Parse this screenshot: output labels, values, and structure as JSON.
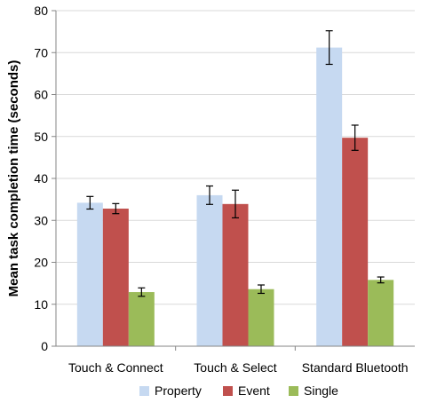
{
  "chart_data": {
    "type": "bar",
    "title": "",
    "xlabel": "",
    "ylabel": "Mean task completion time (seconds)",
    "ylim": [
      0,
      80
    ],
    "yticks": [
      0,
      10,
      20,
      30,
      40,
      50,
      60,
      70,
      80
    ],
    "grid": true,
    "legend_position": "bottom",
    "categories": [
      "Touch & Connect",
      "Touch & Select",
      "Standard Bluetooth"
    ],
    "series": [
      {
        "name": "Property",
        "color": "#c6d9f1",
        "values": [
          34.2,
          36.0,
          71.2
        ],
        "error": [
          1.5,
          2.2,
          4.0
        ]
      },
      {
        "name": "Event",
        "color": "#c0504d",
        "values": [
          32.8,
          33.9,
          49.7
        ],
        "error": [
          1.2,
          3.3,
          3.0
        ]
      },
      {
        "name": "Single",
        "color": "#9bbb59",
        "values": [
          12.9,
          13.6,
          15.8
        ],
        "error": [
          1.0,
          1.0,
          0.7
        ]
      }
    ]
  }
}
